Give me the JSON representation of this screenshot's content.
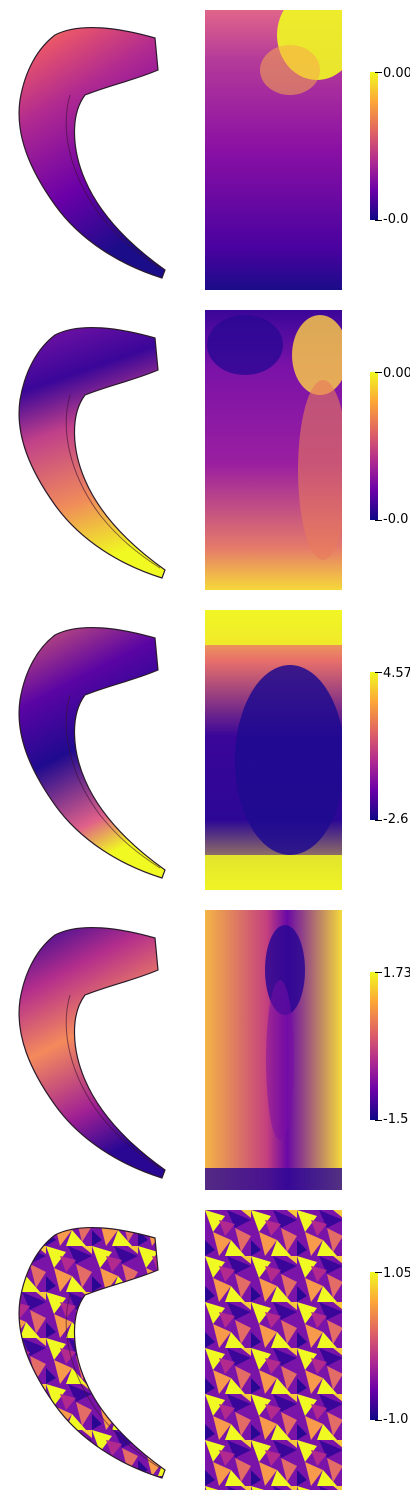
{
  "colormap": {
    "name": "plasma",
    "stops": [
      "#0d0887",
      "#6a00a8",
      "#b12a90",
      "#e16462",
      "#fca636",
      "#f0f921"
    ]
  },
  "panels": [
    {
      "cbar_max": "0.00",
      "cbar_min": "-0.0"
    },
    {
      "cbar_max": "0.00",
      "cbar_min": "-0.0"
    },
    {
      "cbar_max": "4.57",
      "cbar_min": "-2.6"
    },
    {
      "cbar_max": "1.73",
      "cbar_min": "-1.5"
    },
    {
      "cbar_max": "1.05",
      "cbar_min": "-1.0"
    }
  ]
}
